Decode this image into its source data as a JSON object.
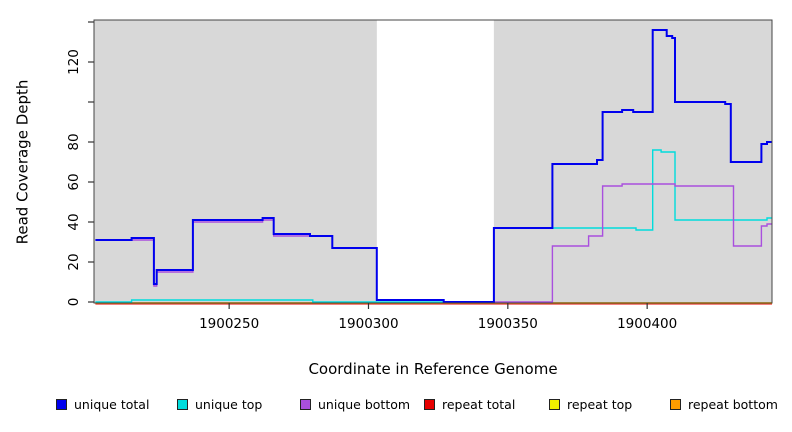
{
  "figure": {
    "ylabel": "Read Coverage Depth",
    "xlabel": "Coordinate in Reference Genome",
    "plot_background_shaded": "#D8D8D8",
    "plot_background_gap": "#FFFFFF",
    "box_color": "#444444"
  },
  "chart_data": {
    "type": "line",
    "subtype": "step-post-coverage",
    "title": "",
    "xlabel": "Coordinate in Reference Genome",
    "ylabel": "Read Coverage Depth",
    "xlim": [
      1900201.5,
      1900444.8
    ],
    "ylim": [
      0,
      141
    ],
    "x_ticks": [
      1900250,
      1900300,
      1900350,
      1900400
    ],
    "x_tick_labels": [
      "1900250",
      "1900300",
      "1900350",
      "1900400"
    ],
    "y_ticks": [
      0,
      20,
      40,
      60,
      80,
      100,
      120,
      140
    ],
    "y_tick_labels": [
      "0",
      "20",
      "40",
      "60",
      "80",
      "",
      "120",
      ""
    ],
    "grid": false,
    "legend_position": "bottom",
    "shaded_x_regions": [
      [
        1900201.5,
        1900303
      ],
      [
        1900345,
        1900444.8
      ]
    ],
    "series_end_x": 1900444.8,
    "series": [
      {
        "name": "unique total",
        "color": "#0000EE",
        "line_width": 2,
        "steps": [
          [
            1900202,
            31
          ],
          [
            1900215,
            32
          ],
          [
            1900223,
            9
          ],
          [
            1900224,
            16
          ],
          [
            1900237,
            41
          ],
          [
            1900262,
            42
          ],
          [
            1900266,
            34
          ],
          [
            1900279,
            33
          ],
          [
            1900287,
            27
          ],
          [
            1900303,
            1
          ],
          [
            1900327,
            0
          ],
          [
            1900345,
            37
          ],
          [
            1900366,
            69
          ],
          [
            1900382,
            71
          ],
          [
            1900384,
            95
          ],
          [
            1900391,
            96
          ],
          [
            1900395,
            95
          ],
          [
            1900402,
            136
          ],
          [
            1900407,
            133
          ],
          [
            1900409,
            132
          ],
          [
            1900410,
            100
          ],
          [
            1900428,
            99
          ],
          [
            1900430,
            70
          ],
          [
            1900441,
            79
          ],
          [
            1900443,
            80
          ]
        ]
      },
      {
        "name": "unique top",
        "color": "#00DCDC",
        "line_width": 1.4,
        "steps": [
          [
            1900202,
            0
          ],
          [
            1900215,
            1
          ],
          [
            1900280,
            0
          ],
          [
            1900345,
            37
          ],
          [
            1900396,
            36
          ],
          [
            1900402,
            76
          ],
          [
            1900405,
            75
          ],
          [
            1900410,
            41
          ],
          [
            1900443,
            42
          ]
        ]
      },
      {
        "name": "unique bottom",
        "color": "#A94FDE",
        "line_width": 1.4,
        "steps": [
          [
            1900202,
            31
          ],
          [
            1900223,
            8
          ],
          [
            1900224,
            15
          ],
          [
            1900237,
            40
          ],
          [
            1900262,
            41
          ],
          [
            1900266,
            33
          ],
          [
            1900287,
            27
          ],
          [
            1900303,
            1
          ],
          [
            1900327,
            0
          ],
          [
            1900366,
            28
          ],
          [
            1900379,
            33
          ],
          [
            1900384,
            58
          ],
          [
            1900391,
            59
          ],
          [
            1900410,
            58
          ],
          [
            1900431,
            28
          ],
          [
            1900441,
            38
          ],
          [
            1900443,
            39
          ]
        ]
      },
      {
        "name": "repeat total",
        "color": "#E60000",
        "line_width": 1.4,
        "steps": [
          [
            1900202,
            0
          ]
        ]
      },
      {
        "name": "repeat top",
        "color": "#F0F000",
        "line_width": 1.4,
        "steps": [
          [
            1900202,
            0
          ]
        ]
      },
      {
        "name": "repeat bottom",
        "color": "#FF9D00",
        "line_width": 1.6,
        "steps": [
          [
            1900202,
            0
          ]
        ]
      }
    ]
  },
  "legend": {
    "items": [
      {
        "label": "unique total",
        "color": "#0000EE"
      },
      {
        "label": "unique top",
        "color": "#00DCDC"
      },
      {
        "label": "unique bottom",
        "color": "#A94FDE"
      },
      {
        "label": "repeat total",
        "color": "#E60000"
      },
      {
        "label": "repeat top",
        "color": "#F0F000"
      },
      {
        "label": "repeat bottom",
        "color": "#FF9D00"
      }
    ]
  }
}
